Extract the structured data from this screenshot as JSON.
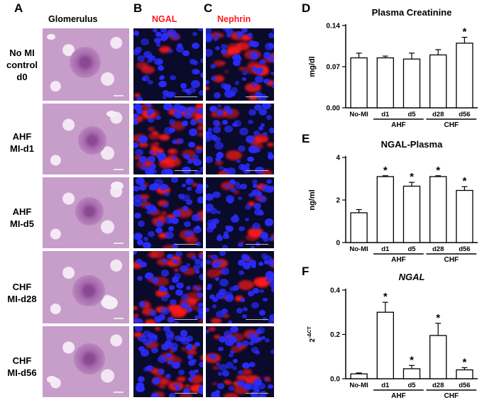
{
  "figure": {
    "panels": {
      "A": "A",
      "B": "B",
      "C": "C",
      "D": "D",
      "E": "E",
      "F": "F"
    },
    "columns": {
      "glomerulus": "Glomerulus",
      "ngal": "NGAL",
      "nephrin": "Nephrin"
    },
    "rows": [
      {
        "lines": [
          "No MI",
          "control",
          "d0"
        ]
      },
      {
        "lines": [
          "AHF",
          "MI-d1"
        ]
      },
      {
        "lines": [
          "AHF",
          "MI-d5"
        ]
      },
      {
        "lines": [
          "CHF",
          "MI-d28"
        ]
      },
      {
        "lines": [
          "CHF",
          "MI-d56"
        ]
      }
    ],
    "colors": {
      "stain_red": "#ff1a1a",
      "nuclei_blue": "#2a2cff",
      "he_pink": "#c79dc9"
    }
  },
  "chart_data": [
    {
      "id": "D",
      "type": "bar",
      "title": "Plasma Creatinine",
      "ylabel": "mg/dl",
      "ylim": [
        0,
        0.14
      ],
      "yticks": [
        "0.00",
        "0.07",
        "0.14"
      ],
      "categories": [
        "No-MI",
        "d1",
        "d5",
        "d28",
        "d56"
      ],
      "values": [
        0.085,
        0.085,
        0.083,
        0.09,
        0.11
      ],
      "errors": [
        0.008,
        0.003,
        0.01,
        0.009,
        0.01
      ],
      "significant": [
        "",
        "",
        "",
        "",
        "*"
      ],
      "groups": [
        {
          "label": "AHF",
          "from": 1,
          "to": 2
        },
        {
          "label": "CHF",
          "from": 3,
          "to": 4
        }
      ]
    },
    {
      "id": "E",
      "type": "bar",
      "title": "NGAL-Plasma",
      "ylabel": "ng/ml",
      "ylim": [
        0,
        4
      ],
      "yticks": [
        "0",
        "2",
        "4"
      ],
      "categories": [
        "No-MI",
        "d1",
        "d5",
        "d28",
        "d56"
      ],
      "values": [
        1.4,
        3.1,
        2.65,
        3.1,
        2.45
      ],
      "errors": [
        0.15,
        0.04,
        0.18,
        0.04,
        0.18
      ],
      "significant": [
        "",
        "*",
        "*",
        "*",
        "*"
      ],
      "groups": [
        {
          "label": "AHF",
          "from": 1,
          "to": 2
        },
        {
          "label": "CHF",
          "from": 3,
          "to": 4
        }
      ]
    },
    {
      "id": "F",
      "type": "bar",
      "title": "NGAL",
      "ylabel": "2^-ΔCT",
      "ylim": [
        0,
        0.4
      ],
      "yticks": [
        "0.0",
        "0.2",
        "0.4"
      ],
      "categories": [
        "No-MI",
        "d1",
        "d5",
        "d28",
        "d56"
      ],
      "values": [
        0.022,
        0.3,
        0.045,
        0.195,
        0.04
      ],
      "errors": [
        0.004,
        0.045,
        0.015,
        0.055,
        0.01
      ],
      "significant": [
        "",
        "*",
        "*",
        "*",
        "*"
      ],
      "groups": [
        {
          "label": "AHF",
          "from": 1,
          "to": 2
        },
        {
          "label": "CHF",
          "from": 3,
          "to": 4
        }
      ]
    }
  ]
}
